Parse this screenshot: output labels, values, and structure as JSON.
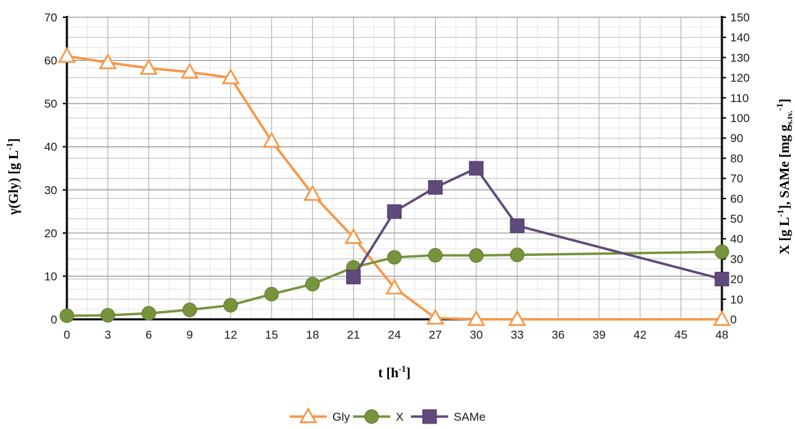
{
  "chart_data": {
    "type": "line",
    "title": "",
    "xlabel": "t [h",
    "xlabel_sup": "-1",
    "xlabel_end": "]",
    "ylabel_left": "γ(Gly) [g L",
    "ylabel_left_sup": "-1",
    "ylabel_left_end": "]",
    "ylabel_right_a": "X [g L",
    "ylabel_right_a_sup": "-1",
    "ylabel_right_b": "], SAMe [mg g",
    "ylabel_right_b_sub": "s.tv.",
    "ylabel_right_b_sup": "-1",
    "ylabel_right_c": "]",
    "xlim": [
      0,
      48
    ],
    "ylim_left": [
      0,
      70
    ],
    "ylim_right": [
      0,
      150
    ],
    "x_ticks": [
      0,
      3,
      6,
      9,
      12,
      15,
      18,
      21,
      24,
      27,
      30,
      33,
      36,
      39,
      42,
      45,
      48
    ],
    "y_left_ticks": [
      0,
      10,
      20,
      30,
      40,
      50,
      60,
      70
    ],
    "y_right_ticks": [
      0,
      10,
      20,
      30,
      40,
      50,
      60,
      70,
      80,
      90,
      100,
      110,
      120,
      130,
      140,
      150
    ],
    "grid": true,
    "legend_position": "bottom",
    "series": [
      {
        "name": "Gly",
        "axis": "left",
        "marker": "triangle",
        "color": "#F79646",
        "points": [
          [
            0,
            61
          ],
          [
            3,
            59.5
          ],
          [
            6,
            58.2
          ],
          [
            9,
            57.3
          ],
          [
            12,
            56
          ],
          [
            15,
            41.3
          ],
          [
            18,
            29
          ],
          [
            21,
            19
          ],
          [
            24,
            7.3
          ],
          [
            27,
            0.3
          ],
          [
            30,
            0
          ],
          [
            33,
            0
          ],
          [
            48,
            0
          ]
        ]
      },
      {
        "name": "X",
        "axis": "right",
        "marker": "circle",
        "color": "#77933C",
        "points": [
          [
            0,
            1.8
          ],
          [
            3,
            2
          ],
          [
            6,
            3
          ],
          [
            9,
            4.7
          ],
          [
            12,
            7
          ],
          [
            15,
            12.5
          ],
          [
            18,
            17.5
          ],
          [
            21,
            25.8
          ],
          [
            24,
            30.8
          ],
          [
            27,
            31.8
          ],
          [
            30,
            31.7
          ],
          [
            33,
            32
          ],
          [
            48,
            33.5
          ]
        ]
      },
      {
        "name": "SAMe",
        "axis": "right",
        "marker": "square",
        "color": "#604A7B",
        "points": [
          [
            21,
            21
          ],
          [
            24,
            53.5
          ],
          [
            27,
            65.5
          ],
          [
            30,
            75
          ],
          [
            33,
            46.5
          ],
          [
            48,
            20
          ]
        ]
      }
    ]
  }
}
